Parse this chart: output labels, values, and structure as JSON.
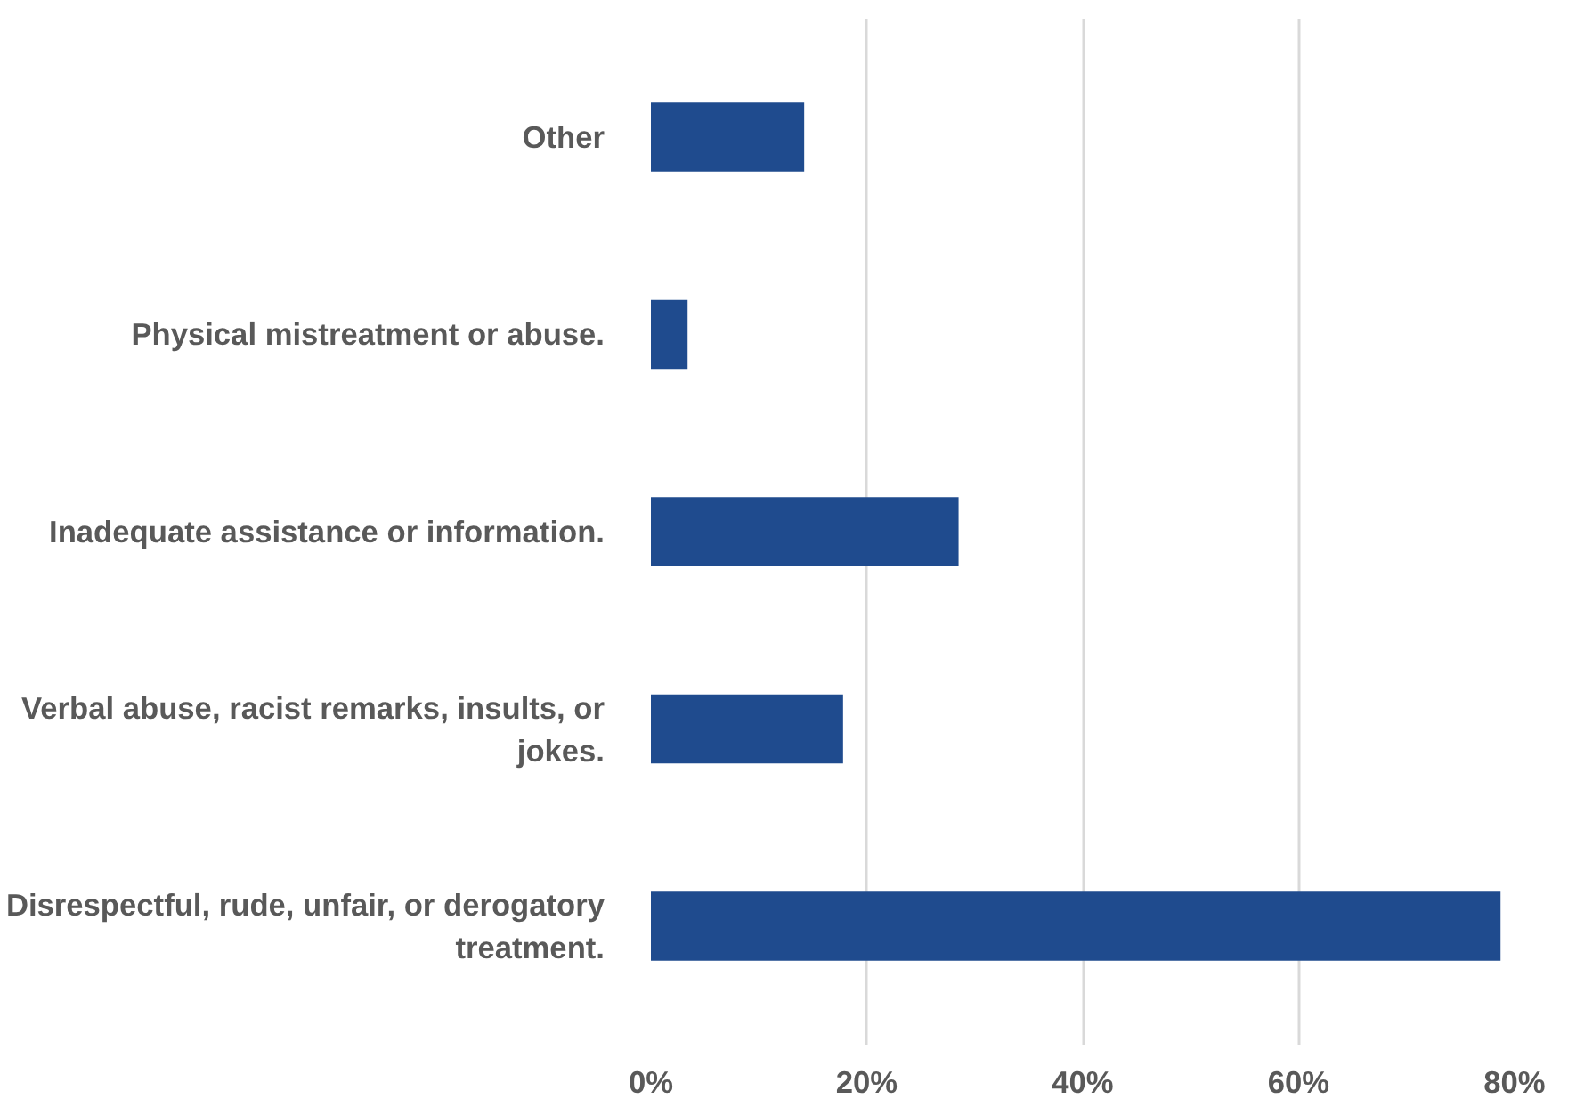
{
  "chart_data": {
    "type": "bar",
    "orientation": "horizontal",
    "categories": [
      "Other",
      "Physical mistreatment or abuse.",
      "Inadequate assistance or information.",
      "Verbal abuse, racist remarks, insults, or\njokes.",
      "Disrespectful, rude, unfair, or derogatory\ntreatment."
    ],
    "values": [
      14.2,
      3.4,
      28.5,
      17.8,
      78.7
    ],
    "color": "#1f4b8e",
    "xlim": [
      0,
      80
    ],
    "xticks": [
      {
        "value": 0,
        "label": "0%"
      },
      {
        "value": 20,
        "label": "20%"
      },
      {
        "value": 40,
        "label": "40%"
      },
      {
        "value": 60,
        "label": "60%"
      },
      {
        "value": 80,
        "label": "80%"
      }
    ],
    "grid": "x"
  }
}
